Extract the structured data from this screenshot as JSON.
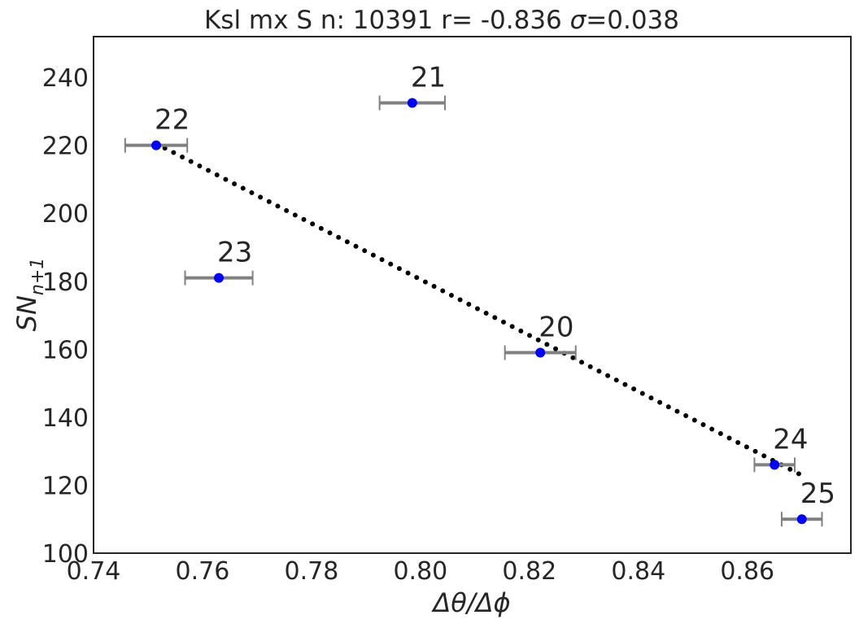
{
  "chart_data": {
    "type": "scatter",
    "title": {
      "pre": "Ksl  mx S n: 10391 r= -0.836  ",
      "sigma_symbol": "σ",
      "post": "=0.038"
    },
    "xlabel": "Δθ/Δϕ",
    "ylabel": {
      "base": "SN",
      "subscript": "n+1"
    },
    "xlim": [
      0.74,
      0.879
    ],
    "ylim": [
      100,
      252
    ],
    "x_ticks": [
      0.74,
      0.76,
      0.78,
      0.8,
      0.82,
      0.84,
      0.86
    ],
    "x_tick_labels": [
      "0.74",
      "0.76",
      "0.78",
      "0.80",
      "0.82",
      "0.84",
      "0.86"
    ],
    "y_ticks": [
      100,
      120,
      140,
      160,
      180,
      200,
      220,
      240
    ],
    "y_tick_labels": [
      "100",
      "120",
      "140",
      "160",
      "180",
      "200",
      "220",
      "240"
    ],
    "grid": false,
    "points": [
      {
        "label": "20",
        "x": 0.822,
        "y": 159,
        "xerr": 0.0065
      },
      {
        "label": "21",
        "x": 0.7985,
        "y": 232.5,
        "xerr": 0.006
      },
      {
        "label": "22",
        "x": 0.7515,
        "y": 220,
        "xerr": 0.0057
      },
      {
        "label": "23",
        "x": 0.763,
        "y": 181,
        "xerr": 0.0062
      },
      {
        "label": "24",
        "x": 0.865,
        "y": 126,
        "xerr": 0.0037
      },
      {
        "label": "25",
        "x": 0.87,
        "y": 110,
        "xerr": 0.0037
      }
    ],
    "fit_line": {
      "x_start": 0.7515,
      "y_start": 220.5,
      "x_end": 0.8705,
      "y_end": 122.5
    },
    "colors": {
      "point": "#0000ff",
      "errorbar": "#808080",
      "fit": "#000000",
      "text": "#262626",
      "axes": "#262626"
    }
  }
}
